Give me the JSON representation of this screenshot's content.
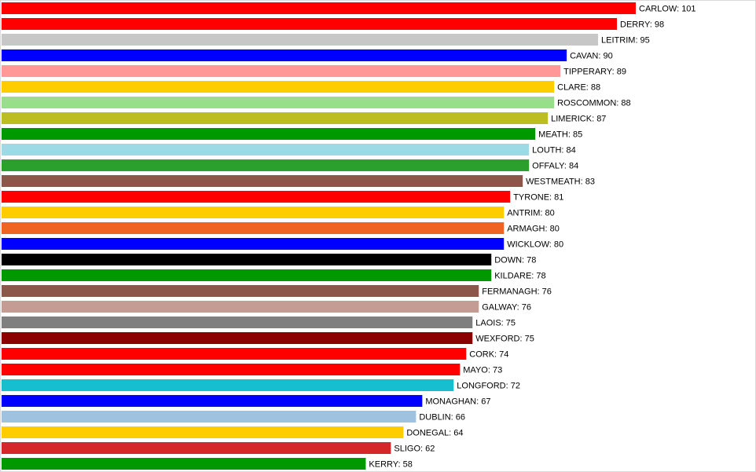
{
  "chart_data": {
    "type": "bar",
    "orientation": "horizontal",
    "title": "",
    "xlabel": "",
    "ylabel": "",
    "xlim": [
      0,
      101
    ],
    "grid": false,
    "legend": "none",
    "categories": [
      "CARLOW",
      "DERRY",
      "LEITRIM",
      "CAVAN",
      "TIPPERARY",
      "CLARE",
      "ROSCOMMON",
      "LIMERICK",
      "MEATH",
      "LOUTH",
      "OFFALY",
      "WESTMEATH",
      "TYRONE",
      "ANTRIM",
      "ARMAGH",
      "WICKLOW",
      "DOWN",
      "KILDARE",
      "FERMANAGH",
      "GALWAY",
      "LAOIS",
      "WEXFORD",
      "CORK",
      "MAYO",
      "LONGFORD",
      "MONAGHAN",
      "DUBLIN",
      "DONEGAL",
      "SLIGO",
      "KERRY"
    ],
    "values": [
      101,
      98,
      95,
      90,
      89,
      88,
      88,
      87,
      85,
      84,
      84,
      83,
      81,
      80,
      80,
      80,
      78,
      78,
      76,
      76,
      75,
      75,
      74,
      73,
      72,
      67,
      66,
      64,
      62,
      58
    ],
    "labels": [
      "CARLOW: 101",
      "DERRY: 98",
      "LEITRIM: 95",
      "CAVAN: 90",
      "TIPPERARY: 89",
      "CLARE: 88",
      "ROSCOMMON: 88",
      "LIMERICK: 87",
      "MEATH: 85",
      "LOUTH: 84",
      "OFFALY: 84",
      "WESTMEATH: 83",
      "TYRONE: 81",
      "ANTRIM: 80",
      "ARMAGH: 80",
      "WICKLOW: 80",
      "DOWN: 78",
      "KILDARE: 78",
      "FERMANAGH: 76",
      "GALWAY: 76",
      "LAOIS: 75",
      "WEXFORD: 75",
      "CORK: 74",
      "MAYO: 73",
      "LONGFORD: 72",
      "MONAGHAN: 67",
      "DUBLIN: 66",
      "DONEGAL: 64",
      "SLIGO: 62",
      "KERRY: 58"
    ],
    "colors": [
      "#ff0000",
      "#ff0000",
      "#c7c7c7",
      "#0000ff",
      "#ff9896",
      "#ffcc00",
      "#98df8a",
      "#bcbd22",
      "#009900",
      "#9edae5",
      "#2ca02c",
      "#8c564b",
      "#ff0000",
      "#ffcc00",
      "#f06423",
      "#0000ff",
      "#000000",
      "#009900",
      "#8c564b",
      "#c49c94",
      "#7f7f7f",
      "#8b0000",
      "#ff0000",
      "#ff0000",
      "#17becf",
      "#0000ff",
      "#9ec2e0",
      "#ffcc00",
      "#d62728",
      "#009900"
    ]
  }
}
